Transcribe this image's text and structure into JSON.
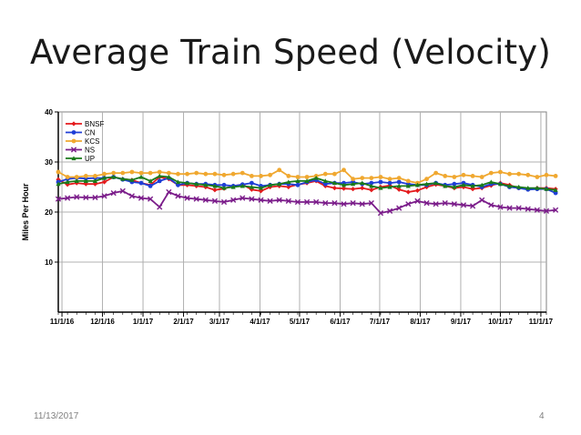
{
  "slide": {
    "title": "Average Train Speed (Velocity)",
    "date": "11/13/2017",
    "page_number": "4"
  },
  "chart_data": {
    "type": "line",
    "title": "",
    "xlabel": "",
    "ylabel": "Miles Per Hour",
    "ylim": [
      0,
      40
    ],
    "yticks": [
      10,
      20,
      30,
      40
    ],
    "xlim": [
      0,
      53
    ],
    "x_tick_labels": [
      "11/1/16",
      "12/1/16",
      "1/1/17",
      "2/1/17",
      "3/1/17",
      "4/1/17",
      "5/1/17",
      "6/1/17",
      "7/1/17",
      "8/1/17",
      "9/1/17",
      "10/1/17",
      "11/1/17"
    ],
    "x_tick_positions": [
      0.4,
      4.8,
      9.2,
      13.6,
      17.5,
      21.9,
      26.2,
      30.6,
      34.9,
      39.3,
      43.7,
      48.0,
      52.4
    ],
    "grid": true,
    "legend_position": "top-left",
    "series": [
      {
        "name": "BNSF",
        "color": "#e41a1c",
        "marker": "diamond",
        "values": [
          26.5,
          25.5,
          25.8,
          25.6,
          25.6,
          26.0,
          27.0,
          26.6,
          26.4,
          25.8,
          25.4,
          27.0,
          26.6,
          25.4,
          25.4,
          25.2,
          25.0,
          24.4,
          24.7,
          25.2,
          25.5,
          24.5,
          24.2,
          25.0,
          25.2,
          25.0,
          25.5,
          25.8,
          26.2,
          25.2,
          24.8,
          24.7,
          24.6,
          24.8,
          24.4,
          25.0,
          25.3,
          24.5,
          24.0,
          24.3,
          25.0,
          25.5,
          25.2,
          24.8,
          25.0,
          24.6,
          24.8,
          25.3,
          25.8,
          25.4,
          24.8,
          24.6,
          24.8,
          24.8,
          24.6
        ]
      },
      {
        "name": "CN",
        "color": "#1f3ed6",
        "marker": "circle",
        "values": [
          26.0,
          26.6,
          26.8,
          26.7,
          26.8,
          26.8,
          27.0,
          26.5,
          26.0,
          25.8,
          25.2,
          26.2,
          26.8,
          25.4,
          25.8,
          25.6,
          25.6,
          25.4,
          25.4,
          25.2,
          25.5,
          25.8,
          25.2,
          25.4,
          25.6,
          25.6,
          25.4,
          26.0,
          26.4,
          25.6,
          25.8,
          25.8,
          26.0,
          25.6,
          25.8,
          26.0,
          25.8,
          26.0,
          25.6,
          25.4,
          25.4,
          25.8,
          25.4,
          25.6,
          25.8,
          25.4,
          25.0,
          25.6,
          25.6,
          25.0,
          24.8,
          24.5,
          24.6,
          24.6,
          23.8
        ]
      },
      {
        "name": "KCS",
        "color": "#f0a830",
        "marker": "circle",
        "values": [
          28.0,
          27.0,
          27.0,
          27.2,
          27.2,
          27.6,
          27.8,
          27.8,
          28.0,
          27.8,
          27.8,
          28.0,
          27.8,
          27.6,
          27.6,
          27.8,
          27.6,
          27.6,
          27.4,
          27.6,
          27.8,
          27.2,
          27.2,
          27.4,
          28.4,
          27.2,
          27.0,
          27.0,
          27.2,
          27.6,
          27.6,
          28.4,
          26.6,
          26.8,
          26.8,
          27.0,
          26.6,
          26.8,
          26.2,
          25.8,
          26.6,
          27.8,
          27.2,
          27.0,
          27.4,
          27.2,
          27.0,
          27.8,
          28.0,
          27.6,
          27.6,
          27.4,
          27.0,
          27.4,
          27.2
        ]
      },
      {
        "name": "NS",
        "color": "#7b1d8a",
        "marker": "x",
        "values": [
          22.6,
          22.8,
          23.0,
          22.9,
          22.9,
          23.2,
          23.8,
          24.2,
          23.2,
          22.8,
          22.6,
          21.0,
          24.0,
          23.2,
          22.8,
          22.6,
          22.4,
          22.2,
          22.0,
          22.4,
          22.8,
          22.6,
          22.4,
          22.2,
          22.4,
          22.2,
          22.0,
          22.0,
          22.0,
          21.8,
          21.8,
          21.6,
          21.8,
          21.6,
          21.8,
          19.8,
          20.2,
          20.8,
          21.6,
          22.2,
          21.8,
          21.6,
          21.8,
          21.6,
          21.4,
          21.2,
          22.4,
          21.4,
          21.0,
          20.8,
          20.8,
          20.6,
          20.4,
          20.2,
          20.4
        ]
      },
      {
        "name": "UP",
        "color": "#1a7a1a",
        "marker": "triangle",
        "values": [
          25.6,
          26.0,
          26.2,
          26.2,
          26.2,
          26.8,
          27.0,
          26.6,
          26.4,
          27.0,
          26.2,
          27.2,
          27.0,
          26.0,
          25.8,
          25.6,
          25.4,
          25.2,
          24.8,
          25.0,
          25.2,
          25.0,
          24.8,
          25.4,
          25.6,
          26.0,
          26.2,
          26.2,
          26.8,
          26.2,
          25.8,
          25.4,
          25.6,
          25.8,
          25.2,
          24.8,
          25.0,
          25.2,
          25.2,
          25.4,
          25.6,
          25.8,
          25.2,
          25.0,
          25.4,
          25.2,
          25.4,
          26.0,
          25.6,
          25.2,
          25.0,
          24.8,
          24.8,
          24.6,
          24.4
        ]
      }
    ]
  }
}
